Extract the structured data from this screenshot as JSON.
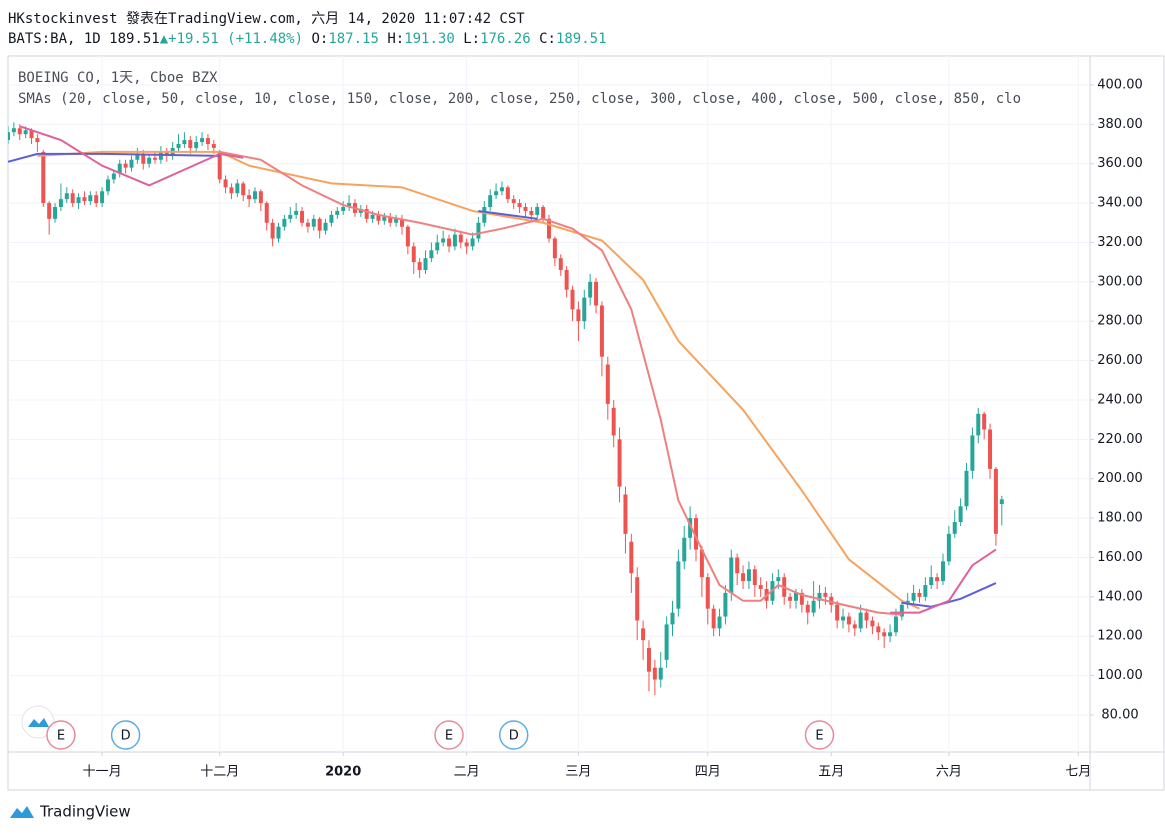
{
  "header": {
    "line1": "HKstockinvest 發表在TradingView.com, 六月 14, 2020 11:07:42 CST",
    "symbol": "BATS:BA, 1D",
    "last": "189.51",
    "change": "+19.51 (+11.48%)",
    "o_label": "O:",
    "o": "187.15",
    "h_label": "H:",
    "h": "191.30",
    "l_label": "L:",
    "l": "176.26",
    "c_label": "C:",
    "c": "189.51"
  },
  "footer": {
    "brand": "TradingView"
  },
  "chart_data": {
    "type": "candlestick",
    "title": "BOEING CO, 1天, Cboe BZX",
    "subtitle": "SMAs (20, close, 50, close, 10, close, 150, close, 200, close, 250, close, 300, close, 400, close, 500, close, 850, clo",
    "up_color": "#26a69a",
    "down_color": "#ef5350",
    "grid": true,
    "xlim": [
      0,
      184
    ],
    "ylim": [
      61.2,
      414.7
    ],
    "yticks": [
      {
        "value": 80,
        "label": "80.00"
      },
      {
        "value": 100,
        "label": "100.00"
      },
      {
        "value": 120,
        "label": "120.00"
      },
      {
        "value": 140,
        "label": "140.00"
      },
      {
        "value": 160,
        "label": "160.00"
      },
      {
        "value": 180,
        "label": "180.00"
      },
      {
        "value": 200,
        "label": "200.00"
      },
      {
        "value": 220,
        "label": "220.00"
      },
      {
        "value": 240,
        "label": "240.00"
      },
      {
        "value": 260,
        "label": "260.00"
      },
      {
        "value": 280,
        "label": "280.00"
      },
      {
        "value": 300,
        "label": "300.00"
      },
      {
        "value": 320,
        "label": "320.00"
      },
      {
        "value": 340,
        "label": "340.00"
      },
      {
        "value": 360,
        "label": "360.00"
      },
      {
        "value": 380,
        "label": "380.00"
      },
      {
        "value": 400,
        "label": "400.00"
      }
    ],
    "xticks": [
      {
        "value": 16,
        "label": "十一月"
      },
      {
        "value": 36,
        "label": "十二月"
      },
      {
        "value": 57,
        "label": "2020"
      },
      {
        "value": 78,
        "label": "二月"
      },
      {
        "value": 97,
        "label": "三月"
      },
      {
        "value": 119,
        "label": "四月"
      },
      {
        "value": 140,
        "label": "五月"
      },
      {
        "value": 160,
        "label": "六月"
      },
      {
        "value": 182,
        "label": "七月"
      }
    ],
    "open": [
      372,
      376,
      378,
      375,
      377,
      373,
      366,
      340,
      332,
      338,
      342,
      345,
      340,
      343,
      341,
      344,
      340,
      346,
      352,
      355,
      360,
      358,
      362,
      365,
      360,
      363,
      362,
      366,
      364,
      368,
      370,
      372,
      368,
      371,
      373,
      370,
      366,
      352,
      348,
      345,
      350,
      344,
      342,
      346,
      340,
      330,
      322,
      328,
      332,
      334,
      336,
      330,
      328,
      332,
      326,
      330,
      334,
      336,
      338,
      340,
      335,
      337,
      332,
      334,
      331,
      333,
      330,
      332,
      328,
      318,
      310,
      306,
      312,
      316,
      320,
      322,
      318,
      324,
      320,
      318,
      322,
      330,
      338,
      344,
      346,
      348,
      342,
      340,
      338,
      336,
      334,
      338,
      332,
      322,
      312,
      306,
      296,
      286,
      280,
      292,
      300,
      288,
      258,
      236,
      220,
      192,
      168,
      150,
      124,
      114,
      104,
      98,
      108,
      126,
      134,
      158,
      170,
      180,
      164,
      150,
      134,
      124,
      130,
      142,
      160,
      152,
      148,
      154,
      146,
      144,
      138,
      148,
      150,
      140,
      138,
      142,
      136,
      132,
      138,
      142,
      140,
      136,
      128,
      130,
      126,
      124,
      132,
      128,
      125,
      122,
      120,
      122,
      130,
      136,
      138,
      142,
      140,
      146,
      150,
      148,
      158,
      172,
      178,
      186,
      204,
      222,
      233,
      225,
      205,
      187.15
    ],
    "high": [
      379,
      381,
      380,
      379,
      378,
      375,
      367,
      341,
      340,
      350,
      348,
      347,
      345,
      346,
      346,
      346,
      348,
      354,
      357,
      362,
      362,
      364,
      368,
      367,
      365,
      366,
      369,
      368,
      371,
      375,
      376,
      374,
      374,
      376,
      375,
      372,
      367,
      354,
      350,
      352,
      351,
      347,
      348,
      347,
      341,
      332,
      330,
      334,
      338,
      340,
      338,
      332,
      334,
      333,
      332,
      336,
      338,
      341,
      344,
      342,
      339,
      339,
      336,
      336,
      335,
      335,
      334,
      334,
      329,
      320,
      312,
      316,
      320,
      324,
      326,
      324,
      327,
      326,
      322,
      325,
      333,
      341,
      347,
      350,
      351,
      349,
      344,
      342,
      340,
      338,
      340,
      339,
      334,
      323,
      314,
      308,
      298,
      290,
      296,
      304,
      302,
      290,
      262,
      240,
      226,
      196,
      172,
      155,
      128,
      118,
      108,
      112,
      130,
      138,
      164,
      176,
      186,
      182,
      166,
      152,
      136,
      134,
      146,
      164,
      162,
      156,
      158,
      156,
      150,
      148,
      152,
      154,
      152,
      142,
      144,
      144,
      138,
      148,
      146,
      145,
      142,
      138,
      134,
      132,
      128,
      136,
      134,
      130,
      127,
      124,
      126,
      134,
      138,
      142,
      146,
      144,
      150,
      156,
      152,
      162,
      176,
      184,
      190,
      208,
      226,
      236,
      234,
      228,
      206,
      191.3
    ],
    "low": [
      370,
      374,
      372,
      373,
      370,
      366,
      338,
      324,
      330,
      336,
      340,
      338,
      337,
      339,
      339,
      338,
      338,
      344,
      350,
      353,
      355,
      356,
      360,
      357,
      358,
      360,
      360,
      361,
      362,
      366,
      368,
      365,
      366,
      369,
      367,
      365,
      350,
      345,
      342,
      343,
      341,
      338,
      340,
      336,
      326,
      318,
      320,
      326,
      330,
      332,
      328,
      325,
      326,
      322,
      324,
      328,
      332,
      334,
      336,
      333,
      333,
      330,
      330,
      329,
      329,
      328,
      328,
      324,
      314,
      304,
      302,
      304,
      310,
      314,
      318,
      315,
      316,
      317,
      314,
      316,
      320,
      328,
      336,
      342,
      344,
      340,
      337,
      335,
      333,
      331,
      332,
      330,
      320,
      308,
      303,
      292,
      280,
      270,
      276,
      288,
      284,
      252,
      230,
      216,
      188,
      162,
      142,
      118,
      108,
      92,
      90,
      94,
      104,
      120,
      130,
      154,
      164,
      158,
      140,
      126,
      120,
      120,
      126,
      138,
      146,
      144,
      144,
      140,
      140,
      134,
      136,
      144,
      136,
      134,
      134,
      132,
      126,
      130,
      134,
      136,
      132,
      124,
      124,
      122,
      120,
      122,
      124,
      121,
      118,
      114,
      117,
      120,
      128,
      134,
      136,
      137,
      138,
      144,
      144,
      146,
      156,
      170,
      176,
      184,
      200,
      218,
      220,
      200,
      166,
      176.26
    ],
    "close": [
      376,
      378,
      375,
      377,
      373,
      371,
      340,
      332,
      338,
      342,
      345,
      340,
      343,
      341,
      344,
      340,
      346,
      352,
      355,
      360,
      358,
      362,
      365,
      360,
      363,
      362,
      366,
      364,
      368,
      370,
      372,
      368,
      371,
      373,
      370,
      368,
      352,
      348,
      345,
      350,
      344,
      342,
      346,
      340,
      330,
      322,
      328,
      332,
      334,
      336,
      330,
      328,
      332,
      326,
      330,
      334,
      336,
      338,
      340,
      335,
      337,
      332,
      334,
      331,
      333,
      330,
      332,
      328,
      318,
      310,
      306,
      312,
      316,
      320,
      322,
      318,
      324,
      320,
      318,
      322,
      330,
      338,
      344,
      346,
      348,
      342,
      340,
      338,
      336,
      334,
      338,
      332,
      322,
      312,
      306,
      296,
      286,
      280,
      292,
      300,
      288,
      262,
      238,
      222,
      196,
      172,
      152,
      128,
      118,
      102,
      98,
      104,
      126,
      132,
      158,
      170,
      180,
      164,
      150,
      134,
      124,
      130,
      142,
      160,
      152,
      148,
      154,
      146,
      144,
      138,
      148,
      150,
      140,
      138,
      142,
      136,
      132,
      138,
      142,
      140,
      136,
      128,
      130,
      126,
      124,
      132,
      128,
      125,
      122,
      120,
      122,
      130,
      136,
      138,
      142,
      140,
      146,
      150,
      148,
      158,
      172,
      178,
      186,
      204,
      222,
      233,
      225,
      205,
      172,
      189.51
    ],
    "lines": [
      {
        "color": "#f7a35c",
        "x": [
          5,
          16,
          36,
          41,
          55,
          67,
          79,
          91,
          101,
          108,
          114,
          125,
          135,
          143,
          152,
          155
        ],
        "values": [
          364,
          366,
          366,
          359,
          350,
          348,
          336,
          330,
          321,
          301,
          270,
          235,
          194,
          159,
          138,
          134
        ]
      },
      {
        "color": "#f08080",
        "x": [
          36,
          43,
          50,
          57,
          63,
          70,
          79,
          84,
          91,
          96,
          101,
          106,
          111,
          114,
          118,
          121,
          125,
          128,
          131,
          135,
          142,
          148,
          152
        ],
        "values": [
          366,
          362,
          349,
          339,
          334,
          330,
          324,
          327,
          332,
          327,
          316,
          286,
          230,
          189,
          164,
          146,
          138,
          138,
          146,
          141,
          136,
          132,
          131
        ]
      },
      {
        "color": "#5c5fd6",
        "x": [
          0,
          5,
          16,
          36,
          58,
          80,
          90,
          120,
          152,
          157,
          162,
          168
        ],
        "values": [
          361,
          365,
          365,
          364,
          null,
          336,
          332,
          null,
          137,
          135,
          139,
          147
        ]
      },
      {
        "color": "#e0609b",
        "x": [
          2,
          9,
          16,
          24,
          36,
          40,
          100,
          150,
          155,
          160,
          164,
          168
        ],
        "values": [
          379,
          372,
          359,
          349,
          365,
          363,
          null,
          132,
          132,
          138,
          156,
          164
        ]
      }
    ],
    "events": [
      {
        "label": "E",
        "x": 9,
        "color": "#e88a98"
      },
      {
        "label": "D",
        "x": 20,
        "color": "#5aaee6"
      },
      {
        "label": "E",
        "x": 75,
        "color": "#e88a98"
      },
      {
        "label": "D",
        "x": 86,
        "color": "#5aaee6"
      },
      {
        "label": "E",
        "x": 138,
        "color": "#e88a98"
      }
    ]
  }
}
